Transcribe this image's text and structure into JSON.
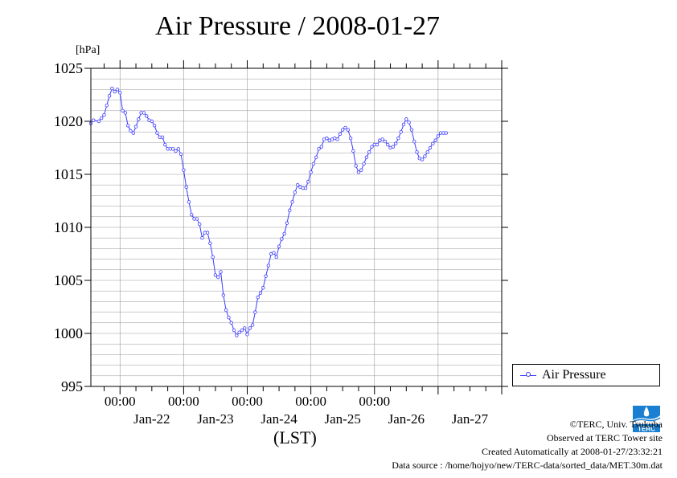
{
  "page": {
    "title": "Air Pressure / 2008-01-27",
    "unit": "[hPa]",
    "xaxis_label": "(LST)",
    "legend_label": "Air Pressure",
    "copyright": "©TERC, Univ. Tsukuba",
    "observed": "Observed at TERC Tower site",
    "created": "Created Automatically at 2008-01-27/23:32:21",
    "source": "Data source : /home/hojyo/new/TERC-data/sorted_data/MET.30m.dat",
    "logo_text": "TERC"
  },
  "colors": {
    "series": "#3b3bff",
    "grid": "#999999",
    "logo": "#1a7fd0"
  },
  "chart_data": {
    "type": "line",
    "title": "Air Pressure / 2008-01-27",
    "ylabel": "[hPa]",
    "xlabel": "(LST)",
    "ylim": [
      995,
      1025
    ],
    "yticks": [
      995,
      1000,
      1005,
      1010,
      1015,
      1020,
      1025
    ],
    "xlim": [
      "2008-01-21 13:00",
      "2008-01-28 00:00"
    ],
    "time_ticks": [
      "00:00",
      "00:00",
      "00:00",
      "00:00",
      "00:00"
    ],
    "day_labels": [
      "Jan-22",
      "Jan-23",
      "Jan-24",
      "Jan-25",
      "Jan-26",
      "Jan-27"
    ],
    "grid": true,
    "legend_position": "right",
    "series": [
      {
        "name": "Air Pressure",
        "marker": "circle",
        "points": [
          [
            "2008-01-21 13:00",
            1019.8
          ],
          [
            "2008-01-21 14:00",
            1020.1
          ],
          [
            "2008-01-21 16:00",
            1020.0
          ],
          [
            "2008-01-21 17:00",
            1020.3
          ],
          [
            "2008-01-21 18:00",
            1020.6
          ],
          [
            "2008-01-21 19:00",
            1021.5
          ],
          [
            "2008-01-21 20:00",
            1022.4
          ],
          [
            "2008-01-21 21:00",
            1023.1
          ],
          [
            "2008-01-21 22:00",
            1022.8
          ],
          [
            "2008-01-21 23:00",
            1023.0
          ],
          [
            "2008-01-22 00:00",
            1022.7
          ],
          [
            "2008-01-22 01:00",
            1021.0
          ],
          [
            "2008-01-22 02:00",
            1020.8
          ],
          [
            "2008-01-22 03:00",
            1019.6
          ],
          [
            "2008-01-22 04:00",
            1019.1
          ],
          [
            "2008-01-22 05:00",
            1018.9
          ],
          [
            "2008-01-22 06:00",
            1019.5
          ],
          [
            "2008-01-22 07:00",
            1020.2
          ],
          [
            "2008-01-22 08:00",
            1020.8
          ],
          [
            "2008-01-22 09:00",
            1020.8
          ],
          [
            "2008-01-22 10:00",
            1020.5
          ],
          [
            "2008-01-22 11:00",
            1020.1
          ],
          [
            "2008-01-22 12:00",
            1020.0
          ],
          [
            "2008-01-22 13:00",
            1019.6
          ],
          [
            "2008-01-22 14:00",
            1018.9
          ],
          [
            "2008-01-22 15:00",
            1018.5
          ],
          [
            "2008-01-22 16:00",
            1018.5
          ],
          [
            "2008-01-22 17:00",
            1017.8
          ],
          [
            "2008-01-22 18:00",
            1017.4
          ],
          [
            "2008-01-22 19:00",
            1017.4
          ],
          [
            "2008-01-22 20:00",
            1017.4
          ],
          [
            "2008-01-22 21:00",
            1017.2
          ],
          [
            "2008-01-22 22:00",
            1017.4
          ],
          [
            "2008-01-22 23:00",
            1016.9
          ],
          [
            "2008-01-23 00:00",
            1015.4
          ],
          [
            "2008-01-23 01:00",
            1013.8
          ],
          [
            "2008-01-23 02:00",
            1012.4
          ],
          [
            "2008-01-23 03:00",
            1011.2
          ],
          [
            "2008-01-23 04:00",
            1010.8
          ],
          [
            "2008-01-23 05:00",
            1010.8
          ],
          [
            "2008-01-23 06:00",
            1010.3
          ],
          [
            "2008-01-23 07:00",
            1009.0
          ],
          [
            "2008-01-23 08:00",
            1009.5
          ],
          [
            "2008-01-23 09:00",
            1009.5
          ],
          [
            "2008-01-23 10:00",
            1008.5
          ],
          [
            "2008-01-23 11:00",
            1007.2
          ],
          [
            "2008-01-23 12:00",
            1005.5
          ],
          [
            "2008-01-23 13:00",
            1005.3
          ],
          [
            "2008-01-23 14:00",
            1005.8
          ],
          [
            "2008-01-23 15:00",
            1003.6
          ],
          [
            "2008-01-23 16:00",
            1002.2
          ],
          [
            "2008-01-23 17:00",
            1001.5
          ],
          [
            "2008-01-23 18:00",
            1001.0
          ],
          [
            "2008-01-23 19:00",
            1000.3
          ],
          [
            "2008-01-23 20:00",
            999.8
          ],
          [
            "2008-01-23 21:00",
            1000.1
          ],
          [
            "2008-01-23 22:00",
            1000.3
          ],
          [
            "2008-01-23 23:00",
            1000.5
          ],
          [
            "2008-01-24 00:00",
            999.9
          ],
          [
            "2008-01-24 01:00",
            1000.5
          ],
          [
            "2008-01-24 02:00",
            1000.8
          ],
          [
            "2008-01-24 03:00",
            1002.0
          ],
          [
            "2008-01-24 04:00",
            1003.4
          ],
          [
            "2008-01-24 05:00",
            1003.8
          ],
          [
            "2008-01-24 06:00",
            1004.3
          ],
          [
            "2008-01-24 07:00",
            1005.4
          ],
          [
            "2008-01-24 08:00",
            1006.4
          ],
          [
            "2008-01-24 09:00",
            1007.5
          ],
          [
            "2008-01-24 10:00",
            1007.6
          ],
          [
            "2008-01-24 11:00",
            1007.2
          ],
          [
            "2008-01-24 12:00",
            1008.2
          ],
          [
            "2008-01-24 13:00",
            1008.9
          ],
          [
            "2008-01-24 14:00",
            1009.4
          ],
          [
            "2008-01-24 15:00",
            1010.4
          ],
          [
            "2008-01-24 16:00",
            1011.6
          ],
          [
            "2008-01-24 17:00",
            1012.4
          ],
          [
            "2008-01-24 18:00",
            1013.3
          ],
          [
            "2008-01-24 19:00",
            1014.0
          ],
          [
            "2008-01-24 20:00",
            1013.8
          ],
          [
            "2008-01-24 21:00",
            1013.7
          ],
          [
            "2008-01-24 22:00",
            1013.7
          ],
          [
            "2008-01-24 23:00",
            1014.3
          ],
          [
            "2008-01-25 00:00",
            1015.2
          ],
          [
            "2008-01-25 01:00",
            1016.0
          ],
          [
            "2008-01-25 02:00",
            1016.6
          ],
          [
            "2008-01-25 03:00",
            1017.4
          ],
          [
            "2008-01-25 04:00",
            1017.6
          ],
          [
            "2008-01-25 05:00",
            1018.3
          ],
          [
            "2008-01-25 06:00",
            1018.4
          ],
          [
            "2008-01-25 07:00",
            1018.2
          ],
          [
            "2008-01-25 08:00",
            1018.3
          ],
          [
            "2008-01-25 09:00",
            1018.4
          ],
          [
            "2008-01-25 10:00",
            1018.3
          ],
          [
            "2008-01-25 11:00",
            1018.8
          ],
          [
            "2008-01-25 12:00",
            1019.2
          ],
          [
            "2008-01-25 13:00",
            1019.4
          ],
          [
            "2008-01-25 14:00",
            1019.2
          ],
          [
            "2008-01-25 15:00",
            1018.4
          ],
          [
            "2008-01-25 16:00",
            1017.2
          ],
          [
            "2008-01-25 17:00",
            1015.8
          ],
          [
            "2008-01-25 18:00",
            1015.2
          ],
          [
            "2008-01-25 19:00",
            1015.4
          ],
          [
            "2008-01-25 20:00",
            1016.0
          ],
          [
            "2008-01-25 21:00",
            1016.6
          ],
          [
            "2008-01-25 22:00",
            1017.1
          ],
          [
            "2008-01-25 23:00",
            1017.6
          ],
          [
            "2008-01-26 00:00",
            1017.8
          ],
          [
            "2008-01-26 01:00",
            1017.8
          ],
          [
            "2008-01-26 02:00",
            1018.2
          ],
          [
            "2008-01-26 03:00",
            1018.3
          ],
          [
            "2008-01-26 04:00",
            1018.1
          ],
          [
            "2008-01-26 05:00",
            1017.8
          ],
          [
            "2008-01-26 06:00",
            1017.5
          ],
          [
            "2008-01-26 07:00",
            1017.6
          ],
          [
            "2008-01-26 08:00",
            1017.9
          ],
          [
            "2008-01-26 09:00",
            1018.4
          ],
          [
            "2008-01-26 10:00",
            1019.0
          ],
          [
            "2008-01-26 11:00",
            1019.7
          ],
          [
            "2008-01-26 12:00",
            1020.2
          ],
          [
            "2008-01-26 13:00",
            1019.9
          ],
          [
            "2008-01-26 14:00",
            1019.2
          ],
          [
            "2008-01-26 15:00",
            1018.1
          ],
          [
            "2008-01-26 16:00",
            1017.1
          ],
          [
            "2008-01-26 17:00",
            1016.5
          ],
          [
            "2008-01-26 18:00",
            1016.4
          ],
          [
            "2008-01-26 19:00",
            1016.7
          ],
          [
            "2008-01-26 20:00",
            1017.1
          ],
          [
            "2008-01-26 21:00",
            1017.5
          ],
          [
            "2008-01-26 22:00",
            1017.9
          ],
          [
            "2008-01-26 23:00",
            1018.2
          ],
          [
            "2008-01-27 00:00",
            1018.6
          ],
          [
            "2008-01-27 01:00",
            1018.9
          ],
          [
            "2008-01-27 02:00",
            1018.9
          ],
          [
            "2008-01-27 03:00",
            1018.9
          ]
        ]
      }
    ]
  }
}
